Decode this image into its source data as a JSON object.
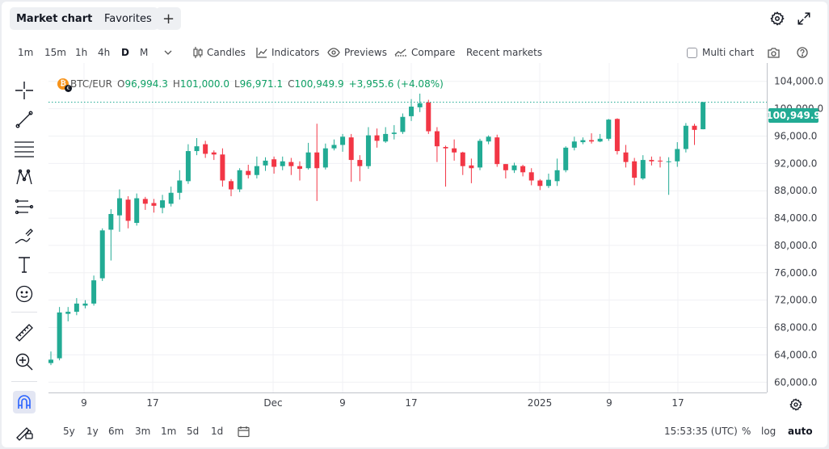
{
  "tabs": [
    {
      "label": "Market chart",
      "active": true
    },
    {
      "label": "Favorites",
      "active": false
    }
  ],
  "toolbar": {
    "intervals": [
      "1m",
      "15m",
      "1h",
      "4h",
      "D",
      "M"
    ],
    "active_interval": "D",
    "candles_label": "Candles",
    "indicators_label": "Indicators",
    "previews_label": "Previews",
    "compare_label": "Compare",
    "recent_markets_label": "Recent markets",
    "multi_chart_label": "Multi chart"
  },
  "legend": {
    "symbol": "BTC/EUR",
    "open_label": "O",
    "open": "96,994.3",
    "high_label": "H",
    "high": "101,000.0",
    "low_label": "L",
    "low": "96,971.1",
    "close_label": "C",
    "close": "100,949.9",
    "change": "+3,955.6 (+4.08%)"
  },
  "colors": {
    "up": "#22ab94",
    "down": "#f23645",
    "up_text": "#0e9f64",
    "last_price_line": "#22ab94"
  },
  "bottom_bar": {
    "ranges": [
      "5y",
      "1y",
      "6m",
      "3m",
      "1m",
      "5d",
      "1d"
    ],
    "time": "15:53:35 (UTC)",
    "percent_label": "%",
    "log_label": "log",
    "auto_label": "auto"
  },
  "chart_data": {
    "type": "candlestick",
    "symbol": "BTC/EUR",
    "y_ticks": [
      "104,000.0",
      "100,000.0",
      "96,000.0",
      "92,000.0",
      "88,000.0",
      "84,000.0",
      "80,000.0",
      "76,000.0",
      "72,000.0",
      "68,000.0",
      "64,000.0",
      "60,000.0"
    ],
    "x_ticks": [
      "9",
      "17",
      "Dec",
      "9",
      "17",
      "2025",
      "9",
      "17"
    ],
    "ylim": [
      58500,
      105500
    ],
    "last_price": "100,949.9",
    "candles": [
      [
        62800,
        63300,
        64500,
        62500
      ],
      [
        63500,
        70200,
        71000,
        63200
      ],
      [
        70000,
        70300,
        71000,
        68900
      ],
      [
        70300,
        71500,
        72300,
        69800
      ],
      [
        71200,
        71500,
        72000,
        70800
      ],
      [
        71500,
        74900,
        75600,
        71200
      ],
      [
        75200,
        82200,
        82500,
        74800
      ],
      [
        82300,
        84600,
        85300,
        77800
      ],
      [
        84400,
        86900,
        88200,
        82000
      ],
      [
        86700,
        83600,
        87200,
        82500
      ],
      [
        83300,
        86900,
        87600,
        82900
      ],
      [
        86800,
        86100,
        87100,
        85200
      ],
      [
        86200,
        85800,
        86800,
        84800
      ],
      [
        85500,
        86600,
        87400,
        84700
      ],
      [
        86100,
        87700,
        88600,
        85700
      ],
      [
        87700,
        89500,
        91000,
        86700
      ],
      [
        89400,
        93800,
        94800,
        89000
      ],
      [
        93800,
        94500,
        95700,
        93200
      ],
      [
        94800,
        93400,
        95300,
        92800
      ],
      [
        93600,
        93300,
        93900,
        92500
      ],
      [
        93300,
        89500,
        94200,
        88600
      ],
      [
        89400,
        88200,
        89700,
        87200
      ],
      [
        88200,
        91000,
        91300,
        87800
      ],
      [
        90900,
        90300,
        91800,
        89800
      ],
      [
        90300,
        91600,
        93000,
        89800
      ],
      [
        91700,
        92400,
        92900,
        90900
      ],
      [
        92600,
        91500,
        93000,
        90500
      ],
      [
        91600,
        92300,
        93000,
        91000
      ],
      [
        92200,
        91600,
        92800,
        90300
      ],
      [
        91600,
        91200,
        92300,
        89500
      ],
      [
        91300,
        93600,
        95000,
        91100
      ],
      [
        93600,
        91300,
        97800,
        86500
      ],
      [
        91400,
        94200,
        94900,
        91100
      ],
      [
        94200,
        94700,
        95500,
        93900
      ],
      [
        94700,
        95900,
        96300,
        93700
      ],
      [
        95800,
        92500,
        96300,
        89300
      ],
      [
        92500,
        91600,
        93200,
        89400
      ],
      [
        91600,
        96100,
        97300,
        91200
      ],
      [
        96100,
        95300,
        97100,
        94300
      ],
      [
        95200,
        96300,
        97300,
        95000
      ],
      [
        96300,
        96500,
        97600,
        95500
      ],
      [
        96600,
        98800,
        99300,
        96300
      ],
      [
        98900,
        100300,
        101400,
        98200
      ],
      [
        100200,
        100800,
        102200,
        99500
      ],
      [
        100900,
        96700,
        101300,
        96300
      ],
      [
        96700,
        94500,
        97300,
        92200
      ],
      [
        94400,
        94200,
        94600,
        88600
      ],
      [
        94200,
        93600,
        95500,
        92400
      ],
      [
        93600,
        91600,
        93700,
        90300
      ],
      [
        91700,
        91300,
        92700,
        89100
      ],
      [
        91400,
        95300,
        95600,
        91000
      ],
      [
        95200,
        95900,
        96100,
        94800
      ],
      [
        95800,
        91900,
        96200,
        91500
      ],
      [
        91900,
        91000,
        91900,
        89800
      ],
      [
        91000,
        91700,
        92100,
        90600
      ],
      [
        91600,
        90700,
        91800,
        90100
      ],
      [
        90700,
        89500,
        91300,
        88800
      ],
      [
        89500,
        88700,
        89700,
        88100
      ],
      [
        88700,
        89600,
        90500,
        88400
      ],
      [
        89400,
        91000,
        92700,
        88700
      ],
      [
        91000,
        94300,
        94500,
        90700
      ],
      [
        94300,
        95200,
        95900,
        93900
      ],
      [
        95100,
        95400,
        95800,
        94800
      ],
      [
        95400,
        95200,
        96400,
        94900
      ],
      [
        95200,
        95600,
        96300,
        95100
      ],
      [
        95600,
        98400,
        98500,
        95300
      ],
      [
        98500,
        93800,
        98600,
        93300
      ],
      [
        93600,
        92200,
        94700,
        91400
      ],
      [
        92300,
        89900,
        92800,
        88800
      ],
      [
        89800,
        92500,
        93200,
        89600
      ],
      [
        92500,
        92300,
        93000,
        91700
      ],
      [
        92400,
        92300,
        93000,
        91400
      ],
      [
        92300,
        92300,
        92900,
        87400
      ],
      [
        92300,
        94100,
        95100,
        91500
      ],
      [
        94100,
        97500,
        97900,
        93600
      ],
      [
        97500,
        96900,
        97800,
        94700
      ],
      [
        96994.3,
        100949.9,
        101000.0,
        96971.1
      ]
    ]
  }
}
